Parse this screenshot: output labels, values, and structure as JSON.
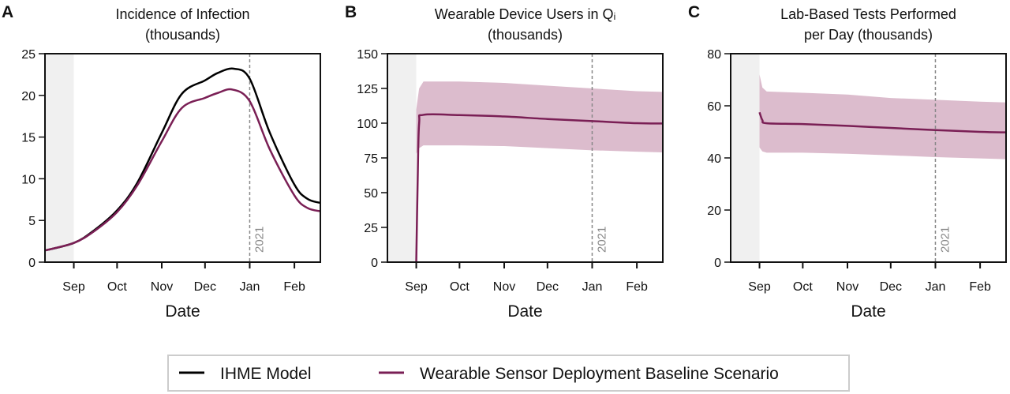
{
  "colors": {
    "ihme": "#000000",
    "wearable": "#7a1f55",
    "band": "#dcbccd",
    "shade": "#f0f0f0",
    "year_line": "#888888"
  },
  "legend": {
    "position": "bottom-center",
    "items": [
      {
        "label": "IHME Model",
        "color": "#000000"
      },
      {
        "label": "Wearable Sensor Deployment Baseline Scenario",
        "color": "#7a1f55"
      }
    ]
  },
  "chart_data": [
    {
      "panel": "A",
      "type": "line",
      "title": [
        "Incidence of Infection",
        "(thousands)"
      ],
      "xlabel": "Date",
      "xlim": [
        "2020-08-12",
        "2021-02-19"
      ],
      "xticks": [
        [
          "2020-09-01",
          "Sep"
        ],
        [
          "2020-10-01",
          "Oct"
        ],
        [
          "2020-11-01",
          "Nov"
        ],
        [
          "2020-12-01",
          "Dec"
        ],
        [
          "2021-01-01",
          "Jan"
        ],
        [
          "2021-02-01",
          "Feb"
        ]
      ],
      "ylim": [
        0,
        25
      ],
      "yticks": [
        0,
        5,
        10,
        15,
        20,
        25
      ],
      "shaded_until": "2020-09-01",
      "year_marker": {
        "date": "2021-01-01",
        "label": "2021"
      },
      "series": [
        {
          "name": "IHME Model",
          "color": "#000000",
          "x": [
            "2020-08-12",
            "2020-09-01",
            "2020-09-15",
            "2020-10-01",
            "2020-10-15",
            "2020-11-01",
            "2020-11-15",
            "2020-12-01",
            "2020-12-10",
            "2020-12-21",
            "2021-01-01",
            "2021-01-15",
            "2021-02-01",
            "2021-02-10",
            "2021-02-19"
          ],
          "y": [
            1.4,
            2.3,
            3.8,
            6.2,
            9.5,
            15.5,
            20.2,
            21.8,
            22.7,
            23.2,
            22.0,
            15.5,
            9.3,
            7.6,
            7.1
          ]
        },
        {
          "name": "Wearable Sensor Deployment Baseline Scenario",
          "color": "#7a1f55",
          "x": [
            "2020-08-12",
            "2020-09-01",
            "2020-09-15",
            "2020-10-01",
            "2020-10-15",
            "2020-11-01",
            "2020-11-15",
            "2020-12-01",
            "2020-12-10",
            "2020-12-20",
            "2021-01-01",
            "2021-01-15",
            "2021-02-01",
            "2021-02-10",
            "2021-02-19"
          ],
          "y": [
            1.4,
            2.3,
            3.7,
            6.0,
            9.2,
            14.5,
            18.5,
            19.7,
            20.3,
            20.7,
            19.3,
            13.5,
            8.0,
            6.5,
            6.1
          ]
        }
      ]
    },
    {
      "panel": "B",
      "type": "line",
      "title": [
        "Wearable Device Users in Qᵢ",
        "(thousands)"
      ],
      "xlabel": "Date",
      "xlim": [
        "2020-08-12",
        "2021-02-19"
      ],
      "xticks": [
        [
          "2020-09-01",
          "Sep"
        ],
        [
          "2020-10-01",
          "Oct"
        ],
        [
          "2020-11-01",
          "Nov"
        ],
        [
          "2020-12-01",
          "Dec"
        ],
        [
          "2021-01-01",
          "Jan"
        ],
        [
          "2021-02-01",
          "Feb"
        ]
      ],
      "ylim": [
        0,
        150
      ],
      "yticks": [
        0,
        25,
        50,
        75,
        100,
        125,
        150
      ],
      "shaded_until": "2020-09-01",
      "year_marker": {
        "date": "2021-01-01",
        "label": "2021"
      },
      "series": [
        {
          "name": "Wearable Sensor Deployment Baseline Scenario",
          "color": "#7a1f55",
          "x": [
            "2020-09-01",
            "2020-09-02",
            "2020-09-03",
            "2020-09-06",
            "2020-10-01",
            "2020-11-01",
            "2020-12-01",
            "2021-01-01",
            "2021-02-01",
            "2021-02-19"
          ],
          "y": [
            0,
            60,
            100,
            106,
            105.8,
            104.8,
            103,
            101.5,
            100,
            99.8
          ],
          "band_x": [
            "2020-09-01",
            "2020-09-03",
            "2020-09-06",
            "2020-10-01",
            "2020-11-01",
            "2020-12-01",
            "2021-01-01",
            "2021-02-01",
            "2021-02-19"
          ],
          "band_upper": [
            110,
            125,
            130,
            130,
            129,
            127,
            125,
            123,
            122.5
          ],
          "band_lower": [
            78,
            82,
            84,
            84,
            83.5,
            82,
            80.5,
            79.5,
            79
          ]
        }
      ]
    },
    {
      "panel": "C",
      "type": "line",
      "title": [
        "Lab-Based Tests Performed",
        "per Day (thousands)"
      ],
      "xlabel": "Date",
      "xlim": [
        "2020-08-12",
        "2021-02-19"
      ],
      "xticks": [
        [
          "2020-09-01",
          "Sep"
        ],
        [
          "2020-10-01",
          "Oct"
        ],
        [
          "2020-11-01",
          "Nov"
        ],
        [
          "2020-12-01",
          "Dec"
        ],
        [
          "2021-01-01",
          "Jan"
        ],
        [
          "2021-02-01",
          "Feb"
        ]
      ],
      "ylim": [
        0,
        80
      ],
      "yticks": [
        0,
        20,
        40,
        60,
        80
      ],
      "shaded_until": "2020-09-01",
      "year_marker": {
        "date": "2021-01-01",
        "label": "2021"
      },
      "series": [
        {
          "name": "Wearable Sensor Deployment Baseline Scenario",
          "color": "#7a1f55",
          "x": [
            "2020-09-01",
            "2020-09-03",
            "2020-09-06",
            "2020-10-01",
            "2020-11-01",
            "2020-12-01",
            "2021-01-01",
            "2021-02-01",
            "2021-02-19"
          ],
          "y": [
            57.5,
            54.5,
            53.3,
            53,
            52.3,
            51.5,
            50.7,
            50,
            49.8
          ],
          "band_x": [
            "2020-09-01",
            "2020-09-03",
            "2020-09-06",
            "2020-10-01",
            "2020-11-01",
            "2020-12-01",
            "2021-01-01",
            "2021-02-01",
            "2021-02-19"
          ],
          "band_upper": [
            72,
            67,
            65.5,
            65,
            64.3,
            63,
            62.3,
            61.6,
            61.3
          ],
          "band_lower": [
            44,
            42.5,
            42,
            42,
            41.6,
            41,
            40.3,
            39.8,
            39.5
          ]
        }
      ]
    }
  ]
}
